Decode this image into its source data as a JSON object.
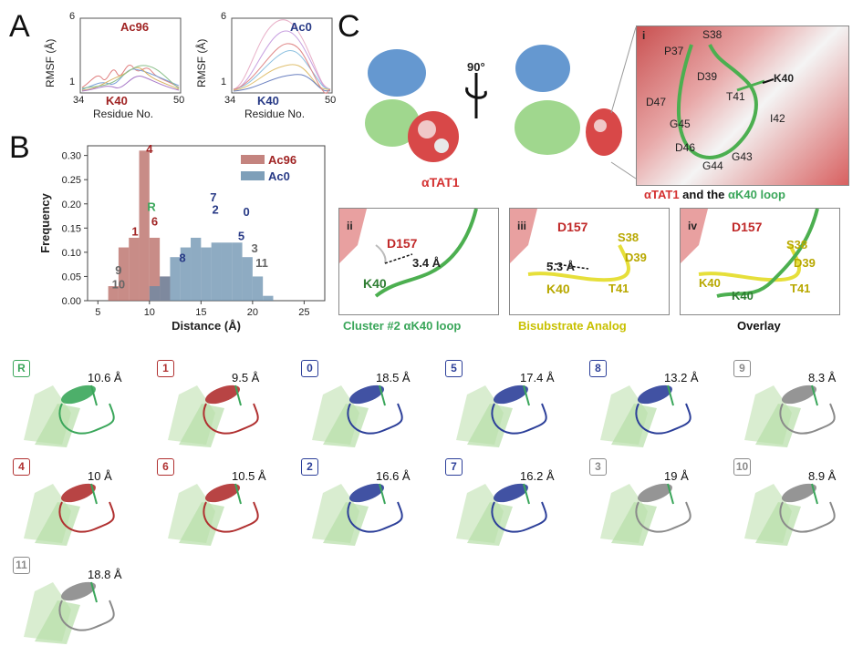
{
  "panels": {
    "a": "A",
    "b": "B",
    "c": "C"
  },
  "panel_a": {
    "left": {
      "title": "Ac96",
      "xlabel": "Residue No.",
      "ylabel": "RMSF (Å)",
      "x_ticks": [
        "34",
        "K40",
        "50"
      ],
      "y_ticks": [
        "6",
        "1"
      ]
    },
    "right": {
      "title": "Ac0",
      "xlabel": "Residue No.",
      "ylabel": "RMSF (Å)",
      "x_ticks": [
        "34",
        "K40",
        "50"
      ],
      "y_ticks": [
        "6",
        "1"
      ]
    }
  },
  "chart_data": {
    "type": "bar",
    "xlabel": "Distance (Å)",
    "ylabel": "Frequency",
    "x_ticks": [
      "5",
      "10",
      "15",
      "20",
      "25"
    ],
    "y_ticks": [
      "0.00",
      "0.05",
      "0.10",
      "0.15",
      "0.20",
      "0.25",
      "0.30"
    ],
    "xlim": [
      4,
      27
    ],
    "ylim": [
      0,
      0.32
    ],
    "bin_width": 1,
    "bin_starts": [
      6,
      7,
      8,
      9,
      10,
      11,
      12,
      13,
      14,
      15,
      16,
      17,
      18,
      19,
      20,
      21
    ],
    "series": [
      {
        "name": "Ac96",
        "color": "#b5655f",
        "values": [
          0.03,
          0.11,
          0.13,
          0.31,
          0.13,
          0.05,
          0.0,
          0.0,
          0.0,
          0.0,
          0.0,
          0.0,
          0.0,
          0.0,
          0.0,
          0.0
        ]
      },
      {
        "name": "Ac0",
        "color": "#5e87a8",
        "values": [
          0.0,
          0.0,
          0.0,
          0.0,
          0.03,
          0.05,
          0.09,
          0.11,
          0.13,
          0.11,
          0.12,
          0.12,
          0.12,
          0.09,
          0.05,
          0.01
        ]
      }
    ],
    "legend": "top-right",
    "cluster_labels": [
      {
        "label": "9",
        "x": 7,
        "y": 0.055,
        "color": "#666666"
      },
      {
        "label": "10",
        "x": 7,
        "y": 0.025,
        "color": "#666666"
      },
      {
        "label": "1",
        "x": 8.6,
        "y": 0.135,
        "color": "#a02424"
      },
      {
        "label": "4",
        "x": 10.0,
        "y": 0.305,
        "color": "#a02424"
      },
      {
        "label": "R",
        "x": 10.2,
        "y": 0.185,
        "color": "#3aa65a"
      },
      {
        "label": "6",
        "x": 10.5,
        "y": 0.155,
        "color": "#a02424"
      },
      {
        "label": "8",
        "x": 13.2,
        "y": 0.08,
        "color": "#283a86"
      },
      {
        "label": "7",
        "x": 16.2,
        "y": 0.205,
        "color": "#283a86"
      },
      {
        "label": "2",
        "x": 16.4,
        "y": 0.18,
        "color": "#283a86"
      },
      {
        "label": "5",
        "x": 18.9,
        "y": 0.125,
        "color": "#283a86"
      },
      {
        "label": "0",
        "x": 19.4,
        "y": 0.175,
        "color": "#283a86"
      },
      {
        "label": "3",
        "x": 20.2,
        "y": 0.1,
        "color": "#666666"
      },
      {
        "label": "11",
        "x": 20.9,
        "y": 0.07,
        "color": "#666666"
      }
    ]
  },
  "panel_c": {
    "rotation": "90°",
    "atat1_label": "αTAT1",
    "inset_i": {
      "label": "i",
      "residues": [
        "S38",
        "P37",
        "D39",
        "K40",
        "T41",
        "D47",
        "G45",
        "I42",
        "D46",
        "G44",
        "G43"
      ]
    },
    "caption_part1": "αTAT1",
    "caption_part2": " and the ",
    "caption_part3": "αK40 loop",
    "inset_ii": {
      "label": "ii",
      "d157": "D157",
      "k40": "K40",
      "distance": "3.4 Å",
      "caption": "Cluster #2 αK40 loop"
    },
    "inset_iii": {
      "label": "iii",
      "d157": "D157",
      "s38": "S38",
      "d39": "D39",
      "k40": "K40",
      "t41": "T41",
      "distance": "5.3 Å",
      "caption": "Bisubstrate Analog"
    },
    "inset_iv": {
      "label": "iv",
      "d157": "D157",
      "s38": "S38",
      "d39": "D39",
      "k40a": "K40",
      "k40b": "K40",
      "t41": "T41",
      "caption": "Overlay"
    }
  },
  "clusters": [
    {
      "id": "R",
      "distance": "10.6 Å",
      "color": "#3aa65a",
      "loop": "#3aa65a"
    },
    {
      "id": "1",
      "distance": "9.5 Å",
      "color": "#b03030",
      "loop": "#b03030"
    },
    {
      "id": "0",
      "distance": "18.5 Å",
      "color": "#2c3f99",
      "loop": "#2c3f99"
    },
    {
      "id": "5",
      "distance": "17.4 Å",
      "color": "#2c3f99",
      "loop": "#2c3f99"
    },
    {
      "id": "8",
      "distance": "13.2 Å",
      "color": "#2c3f99",
      "loop": "#2c3f99"
    },
    {
      "id": "9",
      "distance": "8.3 Å",
      "color": "#8a8a8a",
      "loop": "#8a8a8a"
    },
    {
      "id": "4",
      "distance": "10 Å",
      "color": "#b03030",
      "loop": "#b03030"
    },
    {
      "id": "6",
      "distance": "10.5 Å",
      "color": "#b03030",
      "loop": "#b03030"
    },
    {
      "id": "2",
      "distance": "16.6 Å",
      "color": "#2c3f99",
      "loop": "#2c3f99"
    },
    {
      "id": "7",
      "distance": "16.2 Å",
      "color": "#2c3f99",
      "loop": "#2c3f99"
    },
    {
      "id": "3",
      "distance": "19 Å",
      "color": "#8a8a8a",
      "loop": "#8a8a8a"
    },
    {
      "id": "10",
      "distance": "8.9 Å",
      "color": "#8a8a8a",
      "loop": "#8a8a8a"
    },
    {
      "id": "11",
      "distance": "18.8 Å",
      "color": "#8a8a8a",
      "loop": "#8a8a8a"
    }
  ]
}
